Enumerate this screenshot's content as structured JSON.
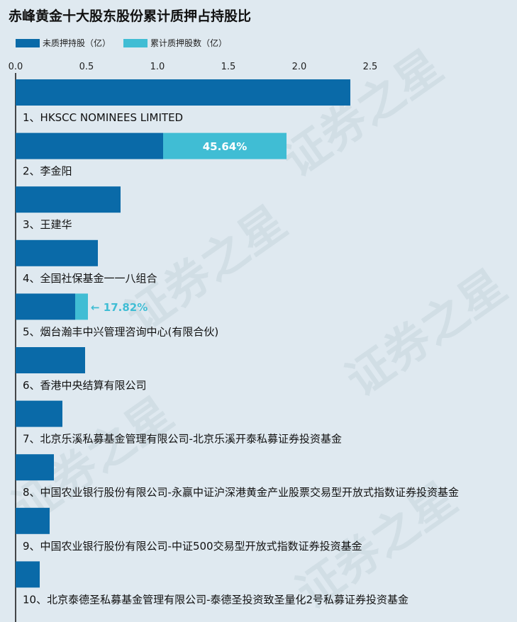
{
  "title": "赤峰黄金十大股东股份累计质押占持股比",
  "watermark": "证券之星",
  "colors": {
    "unpledged": "#0a6aa8",
    "pledged": "#40bdd4",
    "label_arrow": "#40bdd4",
    "axis": "#111111"
  },
  "legend": {
    "unpledged_label": "未质押持股（亿）",
    "pledged_label": "累计质押股数（亿）"
  },
  "chart_data": {
    "type": "bar",
    "orientation": "horizontal",
    "stacked": true,
    "xlim": [
      0,
      2.5
    ],
    "xticks": [
      "0.0",
      "0.5",
      "1.0",
      "1.5",
      "2.0",
      "2.5"
    ],
    "grid": false,
    "legend_position": "top-left",
    "categories": [
      "1、HKSCC NOMINEES LIMITED",
      "2、李金阳",
      "3、王建华",
      "4、全国社保基金一一八组合",
      "5、烟台瀚丰中兴管理咨询中心(有限合伙)",
      "6、香港中央结算有限公司",
      "7、北京乐溪私募基金管理有限公司-北京乐溪开泰私募证券投资基金",
      "8、中国农业银行股份有限公司-永赢中证沪深港黄金产业股票交易型开放式指数证券投资基金",
      "9、中国农业银行股份有限公司-中证500交易型开放式指数证券投资基金",
      "10、北京泰德圣私募基金管理有限公司-泰德圣投资致圣量化2号私募证券投资基金"
    ],
    "series": [
      {
        "name": "未质押持股（亿）",
        "values": [
          2.36,
          1.04,
          0.74,
          0.58,
          0.42,
          0.49,
          0.33,
          0.27,
          0.24,
          0.17
        ]
      },
      {
        "name": "累计质押股数（亿）",
        "values": [
          0,
          0.87,
          0,
          0,
          0.09,
          0,
          0,
          0,
          0,
          0
        ]
      }
    ],
    "annotations": [
      {
        "category_index": 1,
        "text": "45.64%",
        "style": "inside"
      },
      {
        "category_index": 4,
        "text": "← 17.82%",
        "style": "arrow"
      }
    ]
  }
}
